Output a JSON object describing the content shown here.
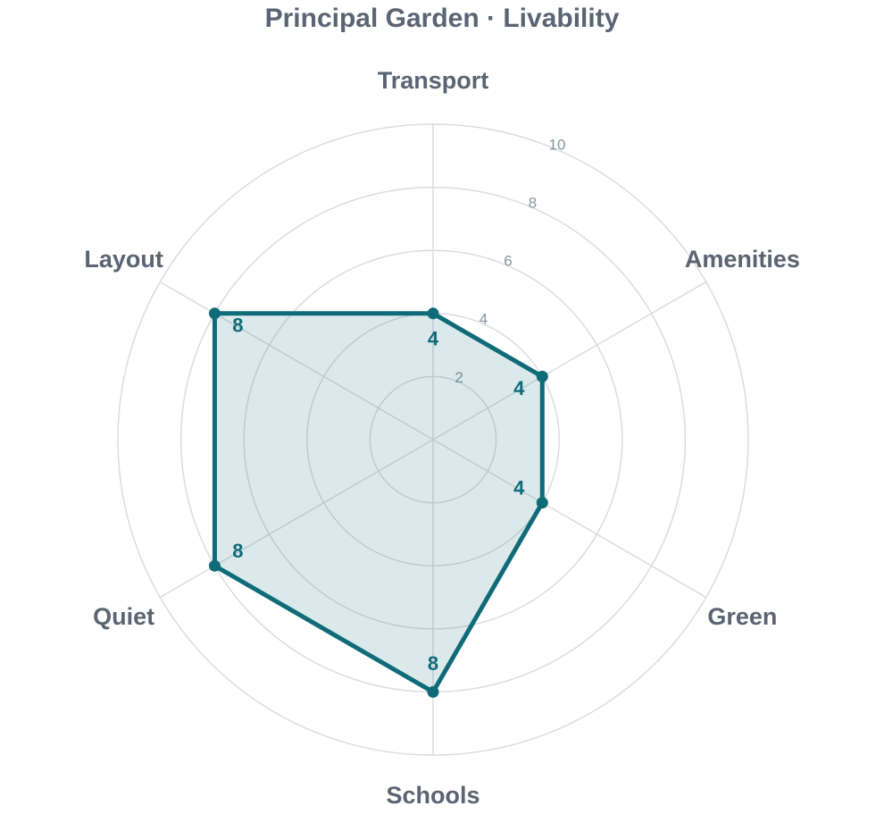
{
  "chart_data": {
    "type": "radar",
    "title": "Principal Garden · Livability",
    "categories": [
      "Transport",
      "Amenities",
      "Green",
      "Schools",
      "Quiet",
      "Layout"
    ],
    "values": [
      4,
      4,
      4,
      8,
      8,
      8
    ],
    "color": "#0f6b78",
    "rlim": [
      0,
      10
    ],
    "rticks": [
      2,
      4,
      6,
      8,
      10
    ],
    "grid": true
  }
}
